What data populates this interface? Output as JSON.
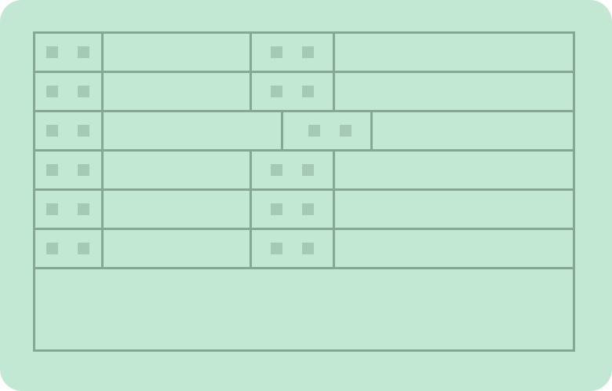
{
  "colors": {
    "card_background": "#c2e8d4",
    "grid_lines": "#86a893",
    "label_placeholders": "#a6c9b3"
  },
  "rows": [
    {
      "label_1": "",
      "value_1": "",
      "label_2": "",
      "value_2": ""
    },
    {
      "label_1": "",
      "value_1": "",
      "label_2": "",
      "value_2": ""
    },
    {
      "label_1": "",
      "value_1": "",
      "label_2": "",
      "value_2": ""
    },
    {
      "label_1": "",
      "value_1": "",
      "label_2": "",
      "value_2": ""
    },
    {
      "label_1": "",
      "value_1": "",
      "label_2": "",
      "value_2": ""
    },
    {
      "label_1": "",
      "value_1": "",
      "label_2": "",
      "value_2": ""
    }
  ],
  "remarks": ""
}
